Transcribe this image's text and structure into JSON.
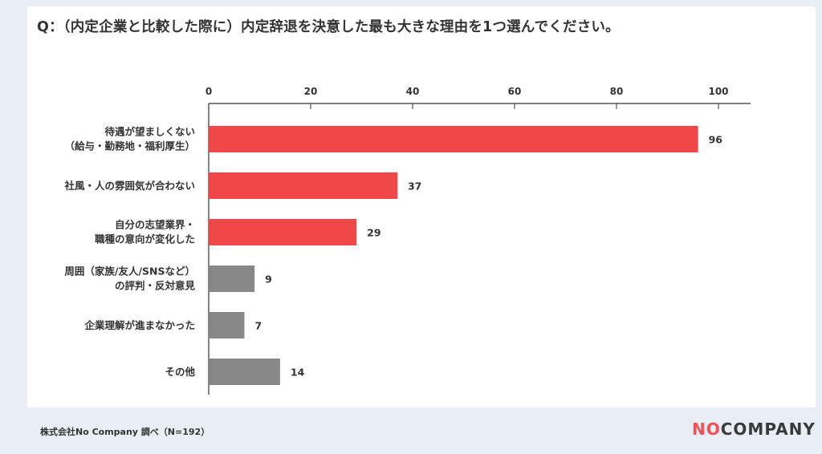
{
  "question": "Q：（内定企業と比較した際に）内定辞退を決意した最も大きな理由を1つ選んでください。",
  "source": "株式会社No Company 調べ（N=192）",
  "logo": {
    "part1": "NO",
    "part2": "COMPANY"
  },
  "colors": {
    "primary": "#f04848",
    "secondary": "#878787",
    "axis": "#333333"
  },
  "chart_data": {
    "type": "bar",
    "orientation": "horizontal",
    "xlim": [
      0,
      100
    ],
    "ticks": [
      "0",
      "20",
      "40",
      "60",
      "80",
      "100"
    ],
    "tick_values": [
      0,
      20,
      40,
      60,
      80,
      100
    ],
    "categories": [
      [
        "待遇が望ましくない",
        "（給与・勤務地・福利厚生）"
      ],
      [
        "社風・人の雰囲気が合わない"
      ],
      [
        "自分の志望業界・",
        "職種の意向が変化した"
      ],
      [
        "周囲（家族/友人/SNSなど）",
        "の評判・反対意見"
      ],
      [
        "企業理解が進まなかった"
      ],
      [
        "その他"
      ]
    ],
    "values": [
      96,
      37,
      29,
      9,
      7,
      14
    ],
    "value_labels": [
      "96",
      "37",
      "29",
      "9",
      "7",
      "14"
    ],
    "bar_colors": [
      "primary",
      "primary",
      "primary",
      "secondary",
      "secondary",
      "secondary"
    ]
  }
}
